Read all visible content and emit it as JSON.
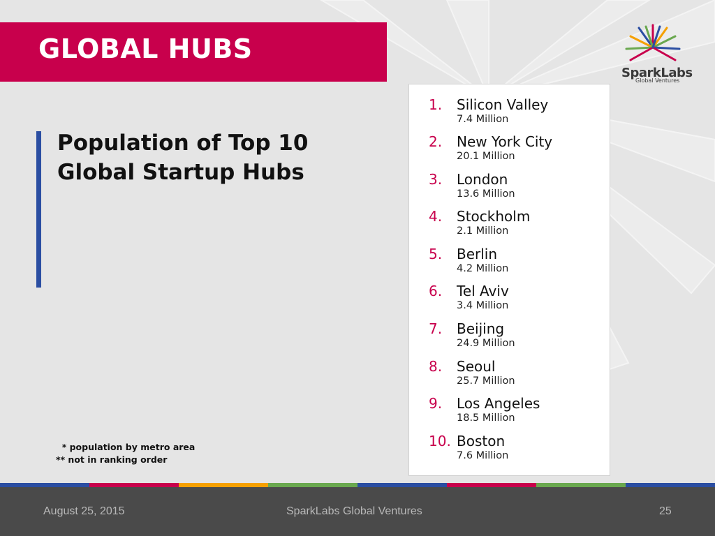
{
  "slide": {
    "title": "GLOBAL HUBS",
    "heading_lines": [
      "Population of Top 10",
      "Global Startup Hubs"
    ],
    "notes": [
      "  * population by metro area",
      "** not in ranking order"
    ]
  },
  "logo": {
    "name": "SparkLabs",
    "tagline": "Global Ventures"
  },
  "hubs": [
    {
      "num": "1.",
      "name": "Silicon Valley",
      "population": "7.4 Million"
    },
    {
      "num": "2.",
      "name": "New York City",
      "population": "20.1 Million"
    },
    {
      "num": "3.",
      "name": "London",
      "population": "13.6 Million"
    },
    {
      "num": "4.",
      "name": "Stockholm",
      "population": "2.1 Million"
    },
    {
      "num": "5.",
      "name": "Berlin",
      "population": "4.2 Million"
    },
    {
      "num": "6.",
      "name": "Tel Aviv",
      "population": "3.4 Million"
    },
    {
      "num": "7.",
      "name": "Beijing",
      "population": "24.9 Million"
    },
    {
      "num": "8.",
      "name": "Seoul",
      "population": "25.7 Million"
    },
    {
      "num": "9.",
      "name": "Los Angeles",
      "population": "18.5 Million"
    },
    {
      "num": "10.",
      "name": "Boston",
      "population": "7.6 Million"
    }
  ],
  "footer": {
    "date": "August 25, 2015",
    "company": "SparkLabs Global Ventures",
    "page": "25"
  },
  "colors": {
    "title_bar": "#c8004c",
    "accent_bar": "#2b4ea2",
    "number": "#c8004c",
    "footer_bg": "#4a4a4a",
    "stripe": [
      "#2b4ea2",
      "#c8004c",
      "#f5a000",
      "#6aa84f",
      "#2b4ea2",
      "#c8004c",
      "#6aa84f",
      "#2b4ea2"
    ]
  }
}
